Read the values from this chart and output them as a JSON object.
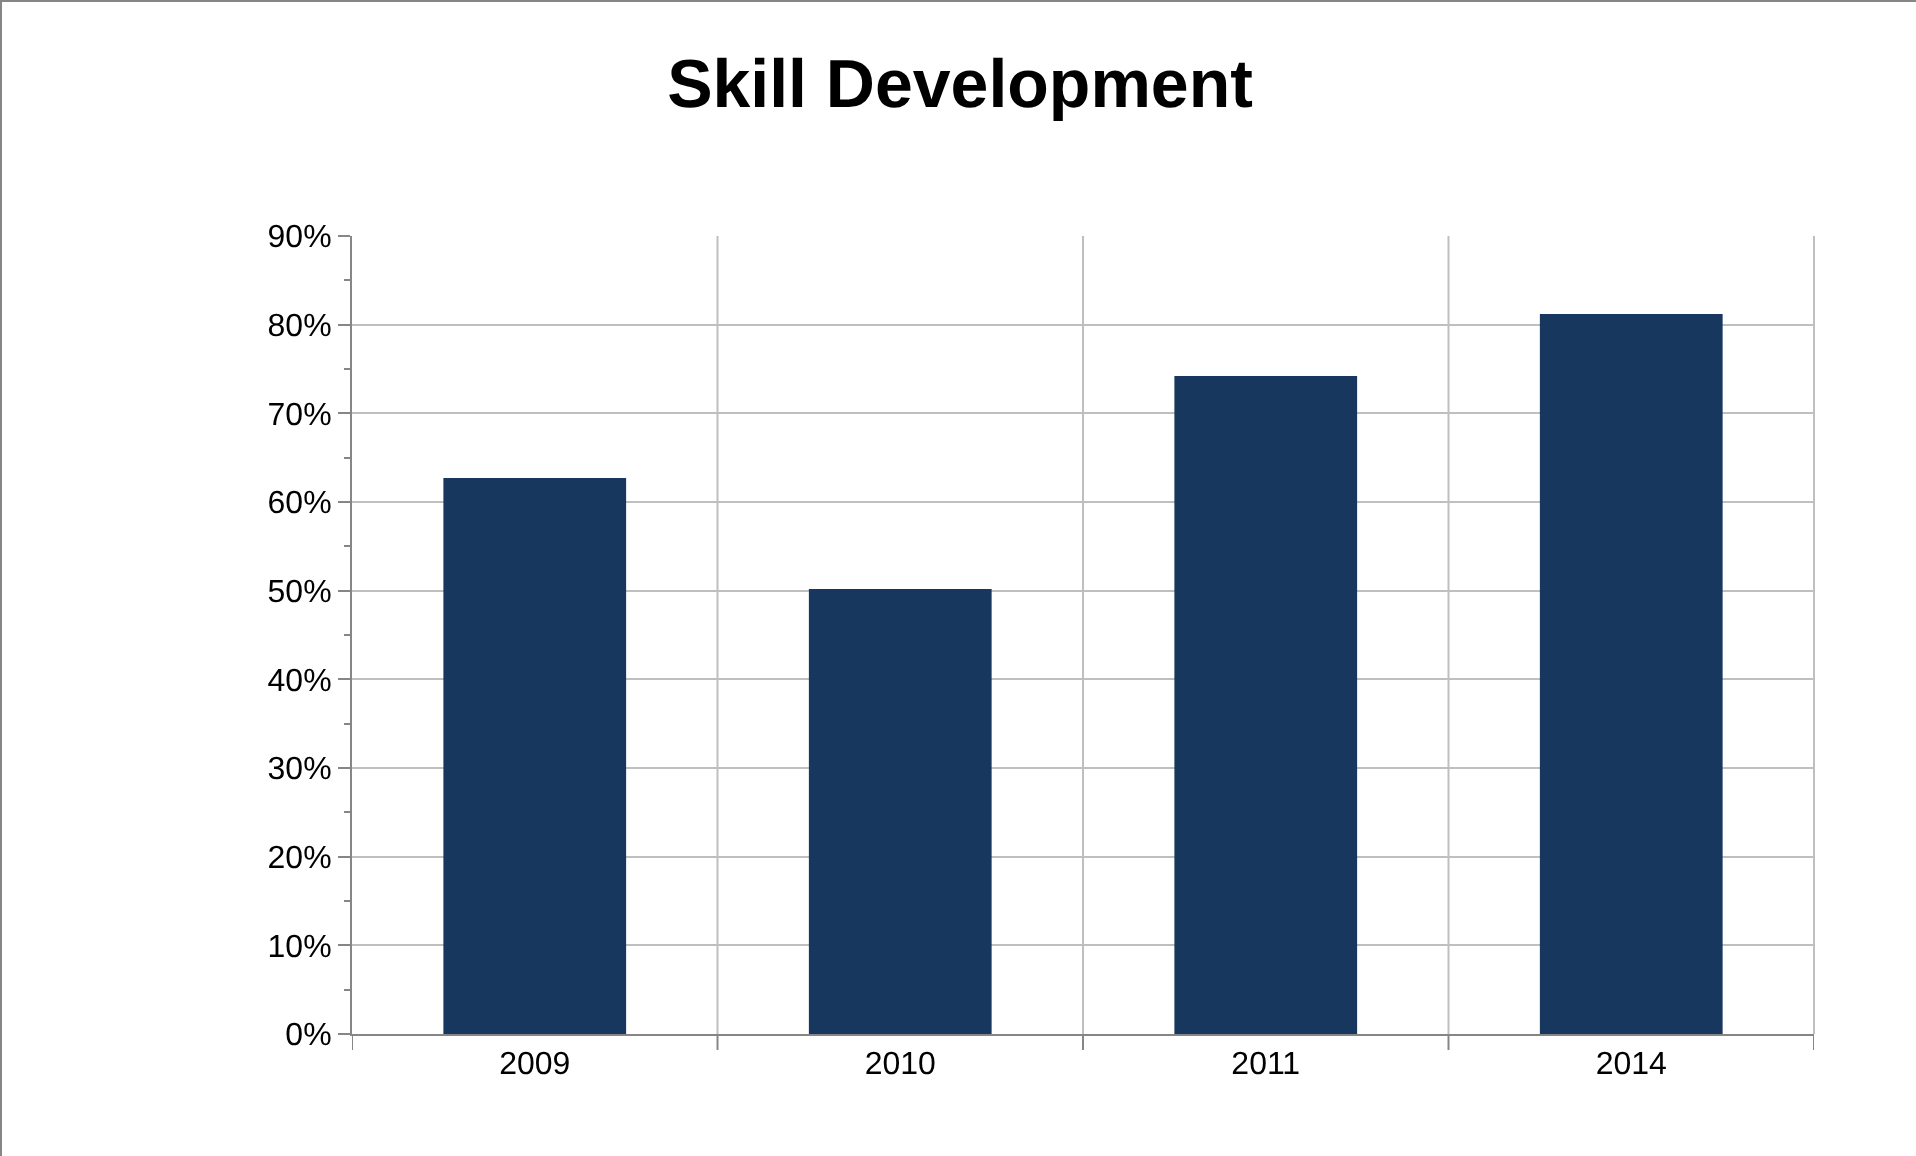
{
  "chart_data": {
    "type": "bar",
    "title": "Skill Development",
    "categories": [
      "2009",
      "2010",
      "2011",
      "2014"
    ],
    "values": [
      62.7,
      50.2,
      74.2,
      81.2
    ],
    "color": "#17375e",
    "ylim": [
      0,
      90
    ],
    "yticks": [
      {
        "value": 0,
        "label": "0%"
      },
      {
        "value": 10,
        "label": "10%"
      },
      {
        "value": 20,
        "label": "20%"
      },
      {
        "value": 30,
        "label": "30%"
      },
      {
        "value": 40,
        "label": "40%"
      },
      {
        "value": 50,
        "label": "50%"
      },
      {
        "value": 60,
        "label": "60%"
      },
      {
        "value": 70,
        "label": "70%"
      },
      {
        "value": 80,
        "label": "80%"
      },
      {
        "value": 90,
        "label": "90%"
      }
    ],
    "grid": true
  }
}
